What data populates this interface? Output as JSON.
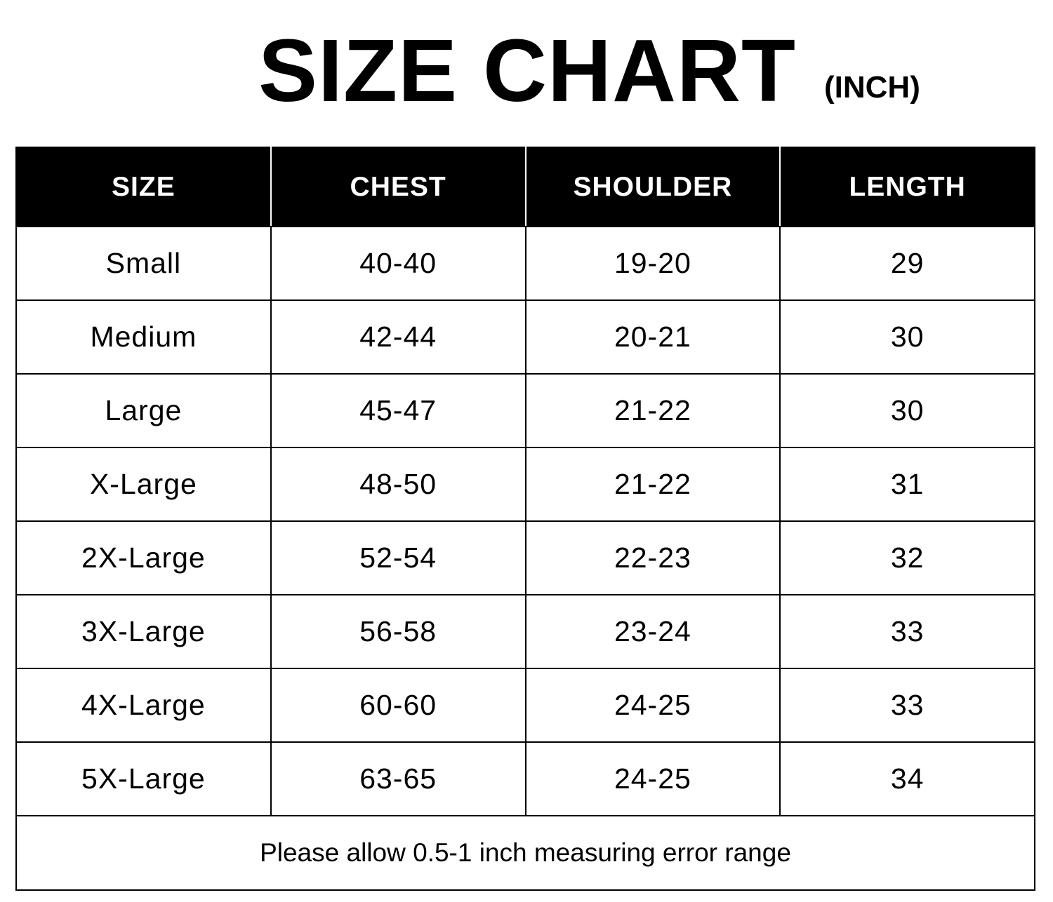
{
  "title": "SIZE CHART",
  "unit": "(INCH)",
  "table": {
    "headers": [
      "SIZE",
      "CHEST",
      "SHOULDER",
      "LENGTH"
    ],
    "rows": [
      [
        "Small",
        "40-40",
        "19-20",
        "29"
      ],
      [
        "Medium",
        "42-44",
        "20-21",
        "30"
      ],
      [
        "Large",
        "45-47",
        "21-22",
        "30"
      ],
      [
        "X-Large",
        "48-50",
        "21-22",
        "31"
      ],
      [
        "2X-Large",
        "52-54",
        "22-23",
        "32"
      ],
      [
        "3X-Large",
        "56-58",
        "23-24",
        "33"
      ],
      [
        "4X-Large",
        "60-60",
        "24-25",
        "33"
      ],
      [
        "5X-Large",
        "63-65",
        "24-25",
        "34"
      ]
    ],
    "note": "Please allow 0.5-1 inch measuring error range"
  }
}
